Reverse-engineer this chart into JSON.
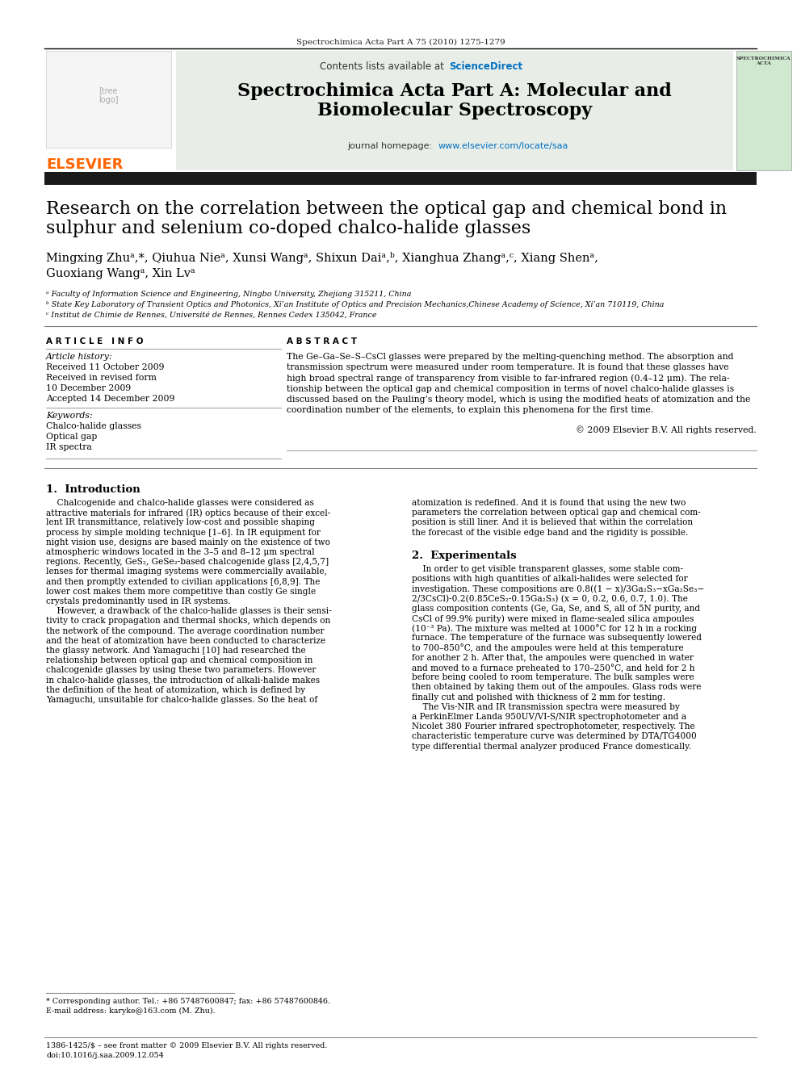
{
  "journal_header": "Spectrochimica Acta Part A 75 (2010) 1275-1279",
  "contents_line": "Contents lists available at ScienceDirect",
  "sciencedirect_color": "#0070c0",
  "journal_title_line1": "Spectrochimica Acta Part A: Molecular and",
  "journal_title_line2": "Biomolecular Spectroscopy",
  "homepage_color": "#0070c0",
  "header_bg": "#e8ede8",
  "article_info_header": "A R T I C L E   I N F O",
  "abstract_header": "A B S T R A C T",
  "copyright": "© 2009 Elsevier B.V. All rights reserved.",
  "footnote_star": "* Corresponding author. Tel.: +86 57487600847; fax: +86 57487600846.",
  "footnote_email": "E-mail address: karyke@163.com (M. Zhu).",
  "footnote_issn": "1386-1425/$ – see front matter © 2009 Elsevier B.V. All rights reserved.",
  "footnote_doi": "doi:10.1016/j.saa.2009.12.054",
  "elsevier_orange": "#ff6600",
  "dark_gray": "#222222",
  "light_gray": "#888888",
  "blue_link": "#0070c0"
}
